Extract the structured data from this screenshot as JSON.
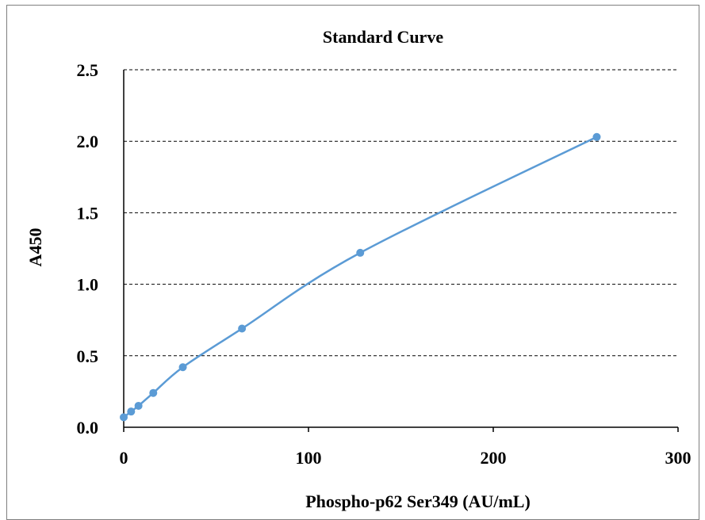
{
  "chart_data": {
    "type": "scatter",
    "title": "Standard Curve",
    "xlabel": "Phospho-p62 Ser349 (AU/mL)",
    "ylabel": "A450",
    "xlim": [
      0,
      300
    ],
    "ylim": [
      0,
      2.5
    ],
    "x_ticks": [
      "0",
      "100",
      "200",
      "300"
    ],
    "y_ticks": [
      "0.0",
      "0.5",
      "1.0",
      "1.5",
      "2.0",
      "2.5"
    ],
    "grid": "horizontal-dashed",
    "series": [
      {
        "x": [
          0,
          4,
          8,
          16,
          32,
          64,
          128,
          256
        ],
        "y": [
          0.07,
          0.11,
          0.15,
          0.24,
          0.42,
          0.69,
          1.22,
          2.03
        ],
        "line": "smooth",
        "color": "#5b9bd5"
      }
    ]
  }
}
